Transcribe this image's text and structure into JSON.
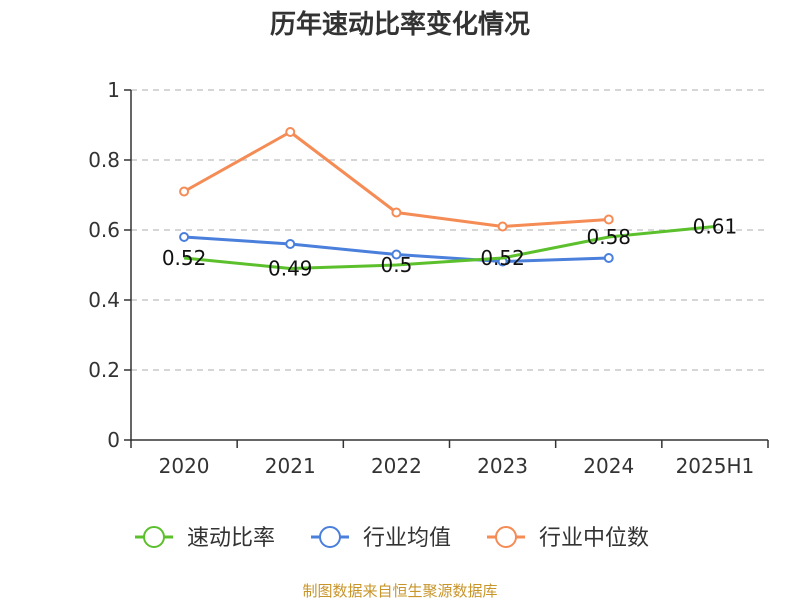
{
  "chart_data": {
    "type": "line",
    "title": "历年速动比率变化情况",
    "categories": [
      "2020",
      "2021",
      "2022",
      "2023",
      "2024",
      "2025H1"
    ],
    "yticks": [
      "0",
      "0.2",
      "0.4",
      "0.6",
      "0.8",
      "1"
    ],
    "ylim": [
      0,
      1
    ],
    "grid": true,
    "legend_position": "bottom",
    "series": [
      {
        "name": "速动比率",
        "color": "#5cc02d",
        "values": [
          0.52,
          0.49,
          0.5,
          0.52,
          0.58,
          0.61
        ],
        "labels": [
          "0.52",
          "0.49",
          "0.5",
          "0.52",
          "0.58",
          "0.61"
        ]
      },
      {
        "name": "行业均值",
        "color": "#4a7fdc",
        "values": [
          0.58,
          0.56,
          0.53,
          0.51,
          0.52,
          null
        ]
      },
      {
        "name": "行业中位数",
        "color": "#f58b55",
        "values": [
          0.71,
          0.88,
          0.65,
          0.61,
          0.63,
          null
        ]
      }
    ]
  },
  "source_text": "制图数据来自恒生聚源数据库"
}
